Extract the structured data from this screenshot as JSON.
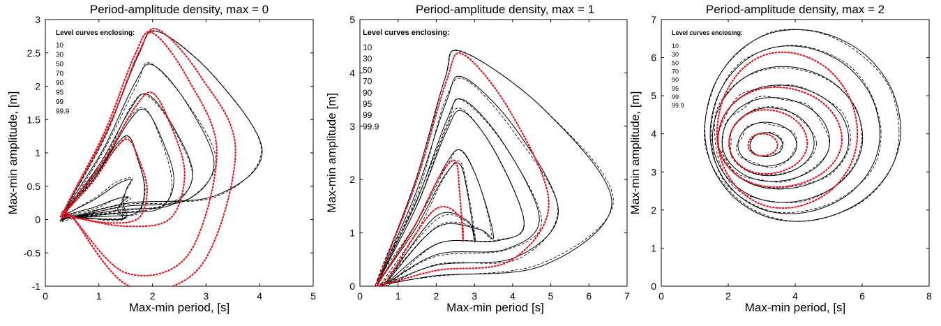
{
  "chart_data": [
    {
      "type": "line",
      "title": "Period-amplitude density, max = 0",
      "xlabel": "Max-min period, [s]",
      "ylabel": "Max-min amplitude, [m]",
      "xlim": [
        0,
        5
      ],
      "ylim": [
        -1,
        3
      ],
      "xticks": [
        "0",
        "1",
        "2",
        "3",
        "4",
        "5"
      ],
      "yticks": [
        "-1",
        "-0.5",
        "0",
        "0.5",
        "1",
        "1.5",
        "2",
        "2.5",
        "3"
      ],
      "legend_title": "Level curves enclosing:",
      "legend_items": [
        "10",
        "30",
        "50",
        "70",
        "90",
        "95",
        "99",
        "99.9"
      ],
      "legend_placement": "top-left",
      "grid": false,
      "start": [
        0.35,
        0.05
      ],
      "contours": [
        {
          "peak": [
            1.55,
            0.2
          ],
          "x_extent": 1.35,
          "y_top": 0.34,
          "y_bot": 0.0
        },
        {
          "peak": [
            1.6,
            0.45
          ],
          "x_extent": 1.45,
          "y_top": 0.6,
          "y_bot": 0.0
        },
        {
          "peak": [
            1.55,
            1.2
          ],
          "x_extent": 1.85,
          "y_top": 1.25,
          "y_bot": 0.05
        },
        {
          "peak": [
            1.85,
            1.65
          ],
          "x_extent": 2.4,
          "y_top": 1.65,
          "y_bot": 0.1
        },
        {
          "peak": [
            1.9,
            1.85
          ],
          "x_extent": 2.75,
          "y_top": 1.88,
          "y_bot": 0.15
        },
        {
          "peak": [
            2.0,
            2.3
          ],
          "x_extent": 3.15,
          "y_top": 2.32,
          "y_bot": 0.2
        },
        {
          "peak": [
            2.1,
            2.8
          ],
          "x_extent": 4.05,
          "y_top": 2.82,
          "y_bot": 0.25
        }
      ],
      "theory_contours": [
        {
          "peak": [
            1.55,
            0.9
          ],
          "x_extent": 1.9,
          "y_top": 1.2,
          "y_bot": -0.05
        },
        {
          "peak": [
            2.0,
            1.5
          ],
          "x_extent": 2.6,
          "y_top": 1.9,
          "y_bot": -0.1
        },
        {
          "peak": [
            2.0,
            2.7
          ],
          "x_extent": 3.2,
          "y_top": 2.8,
          "y_bot": -0.8
        },
        {
          "peak": [
            2.1,
            2.85
          ],
          "x_extent": 3.55,
          "y_top": 2.85,
          "y_bot": -1.0
        }
      ]
    },
    {
      "type": "line",
      "title": "Period-amplitude density, max = 1",
      "xlabel": "Max-min period [s]",
      "ylabel": "Max-min amplitude [m]",
      "xlim": [
        0,
        7
      ],
      "ylim": [
        0,
        5
      ],
      "xticks": [
        "0",
        "1",
        "2",
        "3",
        "4",
        "5",
        "6",
        "7"
      ],
      "yticks": [
        "0",
        "1",
        "2",
        "3",
        "4",
        "5"
      ],
      "legend_title": "Level curves enclosing:",
      "legend_items": [
        "10",
        "30",
        "50",
        "70",
        "90",
        "95",
        "99",
        "99.9"
      ],
      "legend_placement": "top-left",
      "grid": false,
      "start": [
        0.5,
        0.05
      ],
      "contours": [
        {
          "peak": [
            2.6,
            2.1
          ],
          "x_extent": 3.0,
          "y_top": 2.3,
          "y_bot": 1.3
        },
        {
          "peak": [
            2.65,
            2.55
          ],
          "x_extent": 3.5,
          "y_top": 2.55,
          "y_bot": 1.1
        },
        {
          "peak": [
            2.7,
            3.25
          ],
          "x_extent": 4.3,
          "y_top": 3.28,
          "y_bot": 0.8
        },
        {
          "peak": [
            2.7,
            3.5
          ],
          "x_extent": 4.7,
          "y_top": 3.5,
          "y_bot": 0.6
        },
        {
          "peak": [
            2.7,
            3.9
          ],
          "x_extent": 5.2,
          "y_top": 3.92,
          "y_bot": 0.4
        },
        {
          "peak": [
            2.65,
            4.4
          ],
          "x_extent": 6.6,
          "y_top": 4.4,
          "y_bot": 0.2
        }
      ],
      "theory_contours": [
        {
          "peak": [
            2.5,
            2.0
          ],
          "x_extent": 2.7,
          "y_top": 2.35,
          "y_bot": 1.4
        },
        {
          "peak": [
            2.7,
            4.3
          ],
          "x_extent": 4.95,
          "y_top": 4.35,
          "y_bot": 0.3
        }
      ]
    },
    {
      "type": "line",
      "title": "Period-amplitude density, max = 2",
      "xlabel": "Max-min period, [s]",
      "ylabel": "Max-min amplitude, [m]",
      "xlim": [
        0,
        8
      ],
      "ylim": [
        0,
        7
      ],
      "xticks": [
        "0",
        "2",
        "4",
        "6",
        "8"
      ],
      "yticks": [
        "0",
        "1",
        "2",
        "3",
        "4",
        "5",
        "6",
        "7"
      ],
      "legend_title": "Level curves enclosing:",
      "legend_items": [
        "10",
        "30",
        "50",
        "70",
        "90",
        "95",
        "99",
        "99.9"
      ],
      "legend_placement": "top-left",
      "grid": false,
      "start": [
        0.4,
        0.05
      ],
      "contours": [
        {
          "center": [
            3.1,
            3.7
          ],
          "rx": 0.5,
          "ry": 0.3
        },
        {
          "center": [
            3.1,
            3.7
          ],
          "rx": 0.9,
          "ry": 0.55
        },
        {
          "center": [
            3.2,
            3.75
          ],
          "rx": 1.3,
          "ry": 0.85
        },
        {
          "center": [
            3.3,
            3.8
          ],
          "rx": 1.65,
          "ry": 1.05
        },
        {
          "center": [
            3.5,
            3.85
          ],
          "rx": 2.0,
          "ry": 1.3
        },
        {
          "center": [
            3.6,
            3.9
          ],
          "rx": 2.3,
          "ry": 1.7
        },
        {
          "center": [
            3.8,
            4.0
          ],
          "rx": 2.6,
          "ry": 2.1
        },
        {
          "center": [
            4.0,
            4.1
          ],
          "rx": 3.0,
          "ry": 2.4
        }
      ],
      "theory_contours": [
        {
          "center": [
            3.0,
            3.7
          ],
          "rx": 0.45,
          "ry": 0.28
        },
        {
          "center": [
            3.1,
            3.75
          ],
          "rx": 1.2,
          "ry": 0.8
        },
        {
          "center": [
            3.4,
            3.85
          ],
          "rx": 1.9,
          "ry": 1.25
        },
        {
          "center": [
            3.6,
            4.0
          ],
          "rx": 2.15,
          "ry": 1.95
        }
      ]
    }
  ]
}
